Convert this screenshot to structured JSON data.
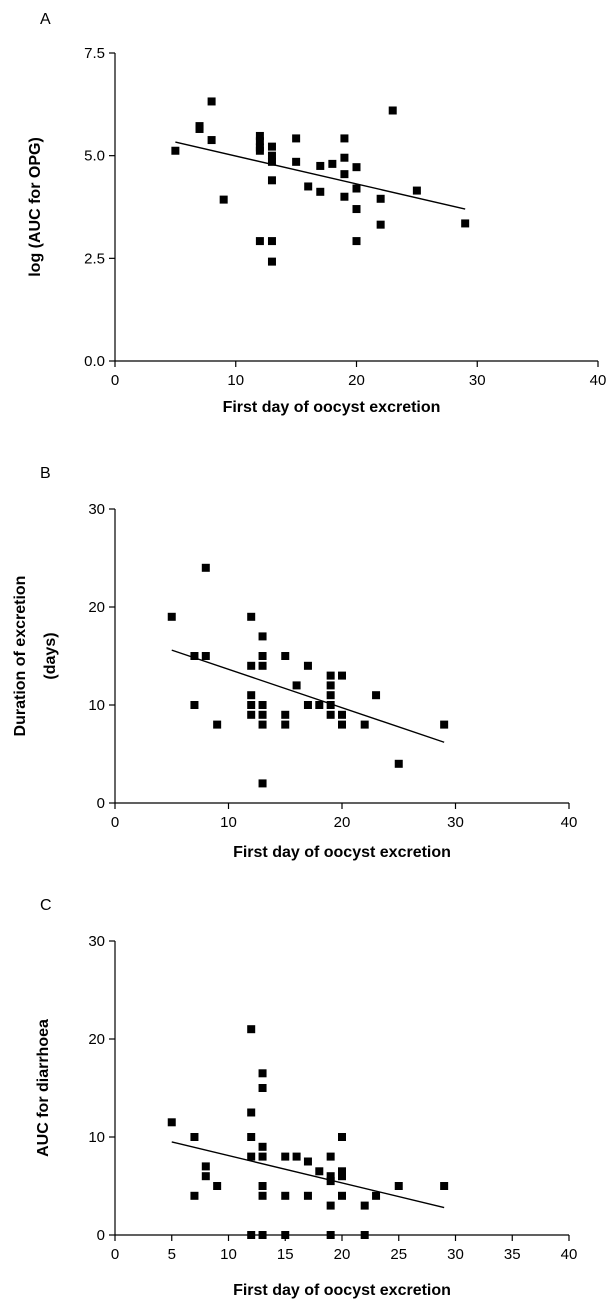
{
  "chart_data": [
    {
      "panel": "A",
      "type": "scatter",
      "xlabel": "First day of oocyst excretion",
      "ylabel": "log (AUC for  OPG)",
      "xlim": [
        0,
        40
      ],
      "ylim": [
        0,
        7.5
      ],
      "xticks": [
        "0",
        "10",
        "20",
        "30",
        "40"
      ],
      "yticks": [
        "0.0",
        "2.5",
        "5.0",
        "7.5"
      ],
      "points": [
        [
          5,
          5.12
        ],
        [
          7,
          5.72
        ],
        [
          7,
          5.65
        ],
        [
          8,
          6.32
        ],
        [
          8,
          5.38
        ],
        [
          9,
          3.93
        ],
        [
          12,
          5.48
        ],
        [
          12,
          5.35
        ],
        [
          12,
          5.2
        ],
        [
          12,
          5.12
        ],
        [
          12,
          2.92
        ],
        [
          13,
          5.22
        ],
        [
          13,
          5.0
        ],
        [
          13,
          4.85
        ],
        [
          13,
          4.4
        ],
        [
          13,
          2.92
        ],
        [
          13,
          2.42
        ],
        [
          15,
          5.42
        ],
        [
          15,
          4.85
        ],
        [
          16,
          4.25
        ],
        [
          17,
          4.75
        ],
        [
          17,
          4.12
        ],
        [
          18,
          4.8
        ],
        [
          19,
          5.42
        ],
        [
          19,
          4.95
        ],
        [
          19,
          4.55
        ],
        [
          19,
          4.0
        ],
        [
          20,
          4.72
        ],
        [
          20,
          4.2
        ],
        [
          20,
          3.7
        ],
        [
          20,
          2.92
        ],
        [
          22,
          3.95
        ],
        [
          22,
          3.32
        ],
        [
          23,
          6.1
        ],
        [
          25,
          4.15
        ],
        [
          29,
          3.35
        ]
      ],
      "trend": [
        [
          5,
          5.33
        ],
        [
          29,
          3.7
        ]
      ]
    },
    {
      "panel": "B",
      "type": "scatter",
      "xlabel": "First day of oocyst excretion",
      "ylabel": [
        "Duration of excretion",
        "(days)"
      ],
      "xlim": [
        0,
        40
      ],
      "ylim": [
        0,
        30
      ],
      "xticks": [
        "0",
        "10",
        "20",
        "30",
        "40"
      ],
      "yticks": [
        "0",
        "10",
        "20",
        "30"
      ],
      "points": [
        [
          5,
          19
        ],
        [
          7,
          15
        ],
        [
          7,
          10
        ],
        [
          8,
          24
        ],
        [
          8,
          15
        ],
        [
          9,
          8
        ],
        [
          12,
          19
        ],
        [
          12,
          14
        ],
        [
          12,
          11
        ],
        [
          12,
          10
        ],
        [
          12,
          9
        ],
        [
          13,
          17
        ],
        [
          13,
          15
        ],
        [
          13,
          14
        ],
        [
          13,
          10
        ],
        [
          13,
          9
        ],
        [
          13,
          8
        ],
        [
          13,
          2
        ],
        [
          15,
          15
        ],
        [
          15,
          9
        ],
        [
          15,
          8
        ],
        [
          16,
          12
        ],
        [
          17,
          14
        ],
        [
          17,
          10
        ],
        [
          18,
          10
        ],
        [
          19,
          13
        ],
        [
          19,
          12
        ],
        [
          19,
          11
        ],
        [
          19,
          10
        ],
        [
          19,
          9
        ],
        [
          20,
          13
        ],
        [
          20,
          9
        ],
        [
          20,
          8
        ],
        [
          22,
          8
        ],
        [
          23,
          11
        ],
        [
          25,
          4
        ],
        [
          29,
          8
        ]
      ],
      "trend": [
        [
          5,
          15.6
        ],
        [
          29,
          6.2
        ]
      ]
    },
    {
      "panel": "C",
      "type": "scatter",
      "xlabel": "First day of oocyst excretion",
      "ylabel": "AUC for diarrhoea",
      "xlim": [
        0,
        40
      ],
      "ylim": [
        0,
        30
      ],
      "xticks": [
        "0",
        "5",
        "10",
        "15",
        "20",
        "25",
        "30",
        "35",
        "40"
      ],
      "yticks": [
        "0",
        "10",
        "20",
        "30"
      ],
      "points": [
        [
          5,
          11.5
        ],
        [
          7,
          10
        ],
        [
          7,
          4
        ],
        [
          8,
          7
        ],
        [
          8,
          6
        ],
        [
          9,
          5
        ],
        [
          12,
          21
        ],
        [
          12,
          12.5
        ],
        [
          12,
          10
        ],
        [
          12,
          8
        ],
        [
          12,
          0
        ],
        [
          13,
          16.5
        ],
        [
          13,
          15
        ],
        [
          13,
          9
        ],
        [
          13,
          8
        ],
        [
          13,
          5
        ],
        [
          13,
          4
        ],
        [
          13,
          0
        ],
        [
          15,
          8
        ],
        [
          15,
          4
        ],
        [
          15,
          0
        ],
        [
          16,
          8
        ],
        [
          17,
          7.5
        ],
        [
          17,
          4
        ],
        [
          18,
          6.5
        ],
        [
          19,
          8
        ],
        [
          19,
          6
        ],
        [
          19,
          5.5
        ],
        [
          19,
          3
        ],
        [
          19,
          0
        ],
        [
          20,
          10
        ],
        [
          20,
          6.5
        ],
        [
          20,
          6
        ],
        [
          20,
          4
        ],
        [
          22,
          3
        ],
        [
          22,
          0
        ],
        [
          23,
          4
        ],
        [
          25,
          5
        ],
        [
          29,
          5
        ]
      ],
      "trend": [
        [
          5,
          9.5
        ],
        [
          29,
          2.8
        ]
      ]
    }
  ]
}
